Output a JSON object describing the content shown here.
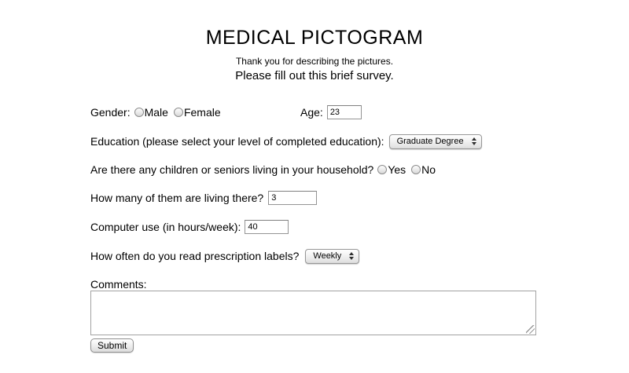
{
  "header": {
    "title": "MEDICAL PICTOGRAM",
    "subtitle": "Thank you for describing the pictures.",
    "instruction": "Please fill out this brief survey."
  },
  "form": {
    "gender": {
      "label": "Gender:",
      "options": [
        {
          "label": "Male",
          "checked": false
        },
        {
          "label": "Female",
          "checked": false
        }
      ]
    },
    "age": {
      "label": "Age:",
      "value": "23"
    },
    "education": {
      "label": "Education (please select your level of completed education):",
      "selected": "Graduate Degree"
    },
    "household": {
      "label": "Are there any children or seniors living in your household?",
      "options": [
        {
          "label": "Yes",
          "checked": false
        },
        {
          "label": "No",
          "checked": false
        }
      ]
    },
    "household_count": {
      "label": "How many of them are living there?",
      "value": "3"
    },
    "computer_use": {
      "label": "Computer use (in hours/week):",
      "value": "40"
    },
    "prescription_frequency": {
      "label": "How often do you read prescription labels?",
      "selected": "Weekly"
    },
    "comments": {
      "label": "Comments:",
      "value": ""
    },
    "submit": {
      "label": "Submit"
    }
  },
  "icons": {
    "select_arrows": "up-down-triangles",
    "resize_grip": "diagonal-lines"
  },
  "colors": {
    "text": "#000000",
    "control_border": "#979797",
    "control_gradient_top": "#ffffff",
    "control_gradient_bottom": "#d8d8d8"
  }
}
